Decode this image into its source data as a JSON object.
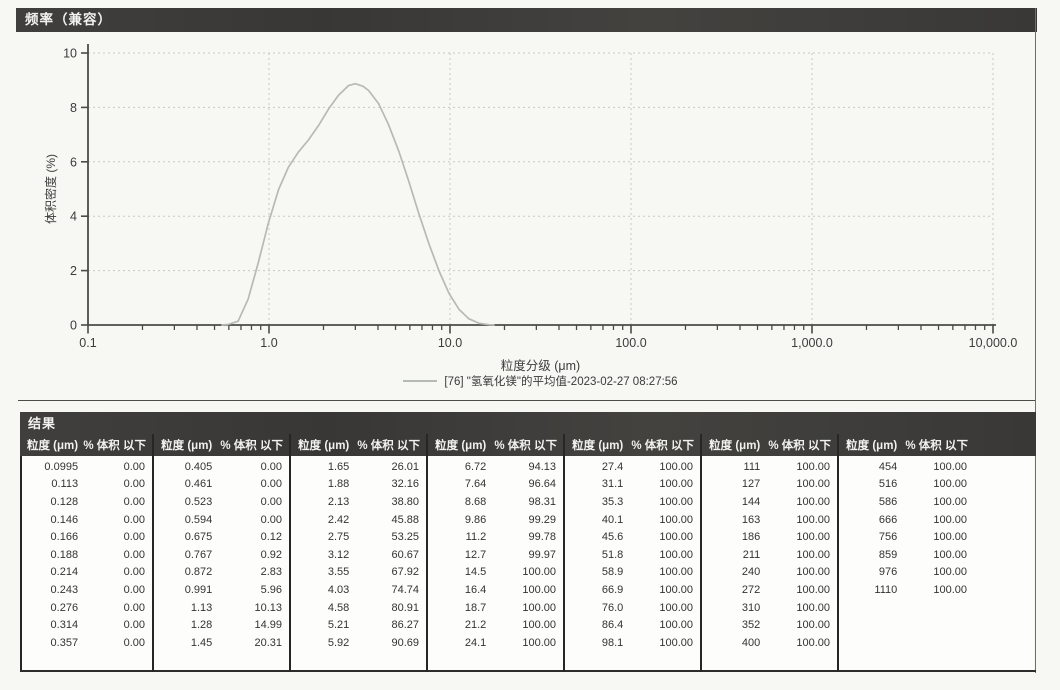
{
  "frequency_panel": {
    "title": "频率（兼容）"
  },
  "chart_data": {
    "type": "line",
    "title": "频率（兼容）",
    "xlabel": "粒度分级 (μm)",
    "ylabel": "体积密度 (%)",
    "x_scale": "log",
    "xlim": [
      0.1,
      10000
    ],
    "ylim": [
      0,
      10
    ],
    "x_tick_values": [
      0.1,
      1,
      10,
      100,
      1000,
      10000
    ],
    "x_tick_labels": [
      "0.1",
      "1.0",
      "10.0",
      "100.0",
      "1,000.0",
      "10,000.0"
    ],
    "y_tick_values": [
      0,
      2,
      4,
      6,
      8,
      10
    ],
    "grid": true,
    "legend_position": "bottom",
    "legend": "[76] \"氢氧化镁\"的平均值-2023-02-27 08:27:56",
    "series": [
      {
        "name": "[76] \"氢氧化镁\"的平均值-2023-02-27 08:27:56",
        "color": "#b6bab4",
        "points": [
          [
            0.55,
            0
          ],
          [
            0.594,
            0.02
          ],
          [
            0.675,
            0.14
          ],
          [
            0.767,
            0.95
          ],
          [
            0.872,
            2.28
          ],
          [
            0.991,
            3.74
          ],
          [
            1.13,
            4.98
          ],
          [
            1.28,
            5.8
          ],
          [
            1.45,
            6.35
          ],
          [
            1.65,
            6.8
          ],
          [
            1.88,
            7.34
          ],
          [
            2.13,
            7.93
          ],
          [
            2.42,
            8.45
          ],
          [
            2.75,
            8.8
          ],
          [
            3.0,
            8.87
          ],
          [
            3.3,
            8.78
          ],
          [
            3.55,
            8.62
          ],
          [
            4.03,
            8.14
          ],
          [
            4.58,
            7.36
          ],
          [
            5.21,
            6.4
          ],
          [
            5.92,
            5.28
          ],
          [
            6.72,
            4.1
          ],
          [
            7.64,
            3.0
          ],
          [
            8.68,
            2.0
          ],
          [
            9.86,
            1.17
          ],
          [
            11.2,
            0.58
          ],
          [
            12.7,
            0.23
          ],
          [
            14.5,
            0.06
          ],
          [
            16.4,
            0.01
          ],
          [
            17.5,
            0
          ]
        ]
      }
    ]
  },
  "results": {
    "title": "结果",
    "column_headers": {
      "size": "粒度 (μm)",
      "pct": "% 体积 以下"
    },
    "groups": [
      {
        "rows": [
          [
            "0.0995",
            "0.00"
          ],
          [
            "0.113",
            "0.00"
          ],
          [
            "0.128",
            "0.00"
          ],
          [
            "0.146",
            "0.00"
          ],
          [
            "0.166",
            "0.00"
          ],
          [
            "0.188",
            "0.00"
          ],
          [
            "0.214",
            "0.00"
          ],
          [
            "0.243",
            "0.00"
          ],
          [
            "0.276",
            "0.00"
          ],
          [
            "0.314",
            "0.00"
          ],
          [
            "0.357",
            "0.00"
          ]
        ]
      },
      {
        "rows": [
          [
            "0.405",
            "0.00"
          ],
          [
            "0.461",
            "0.00"
          ],
          [
            "0.523",
            "0.00"
          ],
          [
            "0.594",
            "0.00"
          ],
          [
            "0.675",
            "0.12"
          ],
          [
            "0.767",
            "0.92"
          ],
          [
            "0.872",
            "2.83"
          ],
          [
            "0.991",
            "5.96"
          ],
          [
            "1.13",
            "10.13"
          ],
          [
            "1.28",
            "14.99"
          ],
          [
            "1.45",
            "20.31"
          ]
        ]
      },
      {
        "rows": [
          [
            "1.65",
            "26.01"
          ],
          [
            "1.88",
            "32.16"
          ],
          [
            "2.13",
            "38.80"
          ],
          [
            "2.42",
            "45.88"
          ],
          [
            "2.75",
            "53.25"
          ],
          [
            "3.12",
            "60.67"
          ],
          [
            "3.55",
            "67.92"
          ],
          [
            "4.03",
            "74.74"
          ],
          [
            "4.58",
            "80.91"
          ],
          [
            "5.21",
            "86.27"
          ],
          [
            "5.92",
            "90.69"
          ]
        ]
      },
      {
        "rows": [
          [
            "6.72",
            "94.13"
          ],
          [
            "7.64",
            "96.64"
          ],
          [
            "8.68",
            "98.31"
          ],
          [
            "9.86",
            "99.29"
          ],
          [
            "11.2",
            "99.78"
          ],
          [
            "12.7",
            "99.97"
          ],
          [
            "14.5",
            "100.00"
          ],
          [
            "16.4",
            "100.00"
          ],
          [
            "18.7",
            "100.00"
          ],
          [
            "21.2",
            "100.00"
          ],
          [
            "24.1",
            "100.00"
          ]
        ]
      },
      {
        "rows": [
          [
            "27.4",
            "100.00"
          ],
          [
            "31.1",
            "100.00"
          ],
          [
            "35.3",
            "100.00"
          ],
          [
            "40.1",
            "100.00"
          ],
          [
            "45.6",
            "100.00"
          ],
          [
            "51.8",
            "100.00"
          ],
          [
            "58.9",
            "100.00"
          ],
          [
            "66.9",
            "100.00"
          ],
          [
            "76.0",
            "100.00"
          ],
          [
            "86.4",
            "100.00"
          ],
          [
            "98.1",
            "100.00"
          ]
        ]
      },
      {
        "rows": [
          [
            "111",
            "100.00"
          ],
          [
            "127",
            "100.00"
          ],
          [
            "144",
            "100.00"
          ],
          [
            "163",
            "100.00"
          ],
          [
            "186",
            "100.00"
          ],
          [
            "211",
            "100.00"
          ],
          [
            "240",
            "100.00"
          ],
          [
            "272",
            "100.00"
          ],
          [
            "310",
            "100.00"
          ],
          [
            "352",
            "100.00"
          ],
          [
            "400",
            "100.00"
          ]
        ]
      },
      {
        "rows": [
          [
            "454",
            "100.00"
          ],
          [
            "516",
            "100.00"
          ],
          [
            "586",
            "100.00"
          ],
          [
            "666",
            "100.00"
          ],
          [
            "756",
            "100.00"
          ],
          [
            "859",
            "100.00"
          ],
          [
            "976",
            "100.00"
          ],
          [
            "1110",
            "100.00"
          ]
        ]
      }
    ]
  },
  "colors": {
    "curve": "#b6bab4",
    "grid": "#c7c7c3",
    "axis": "#4a4a46",
    "bar_background": "#3c3b39",
    "bar_text": "#f2f2ef"
  }
}
